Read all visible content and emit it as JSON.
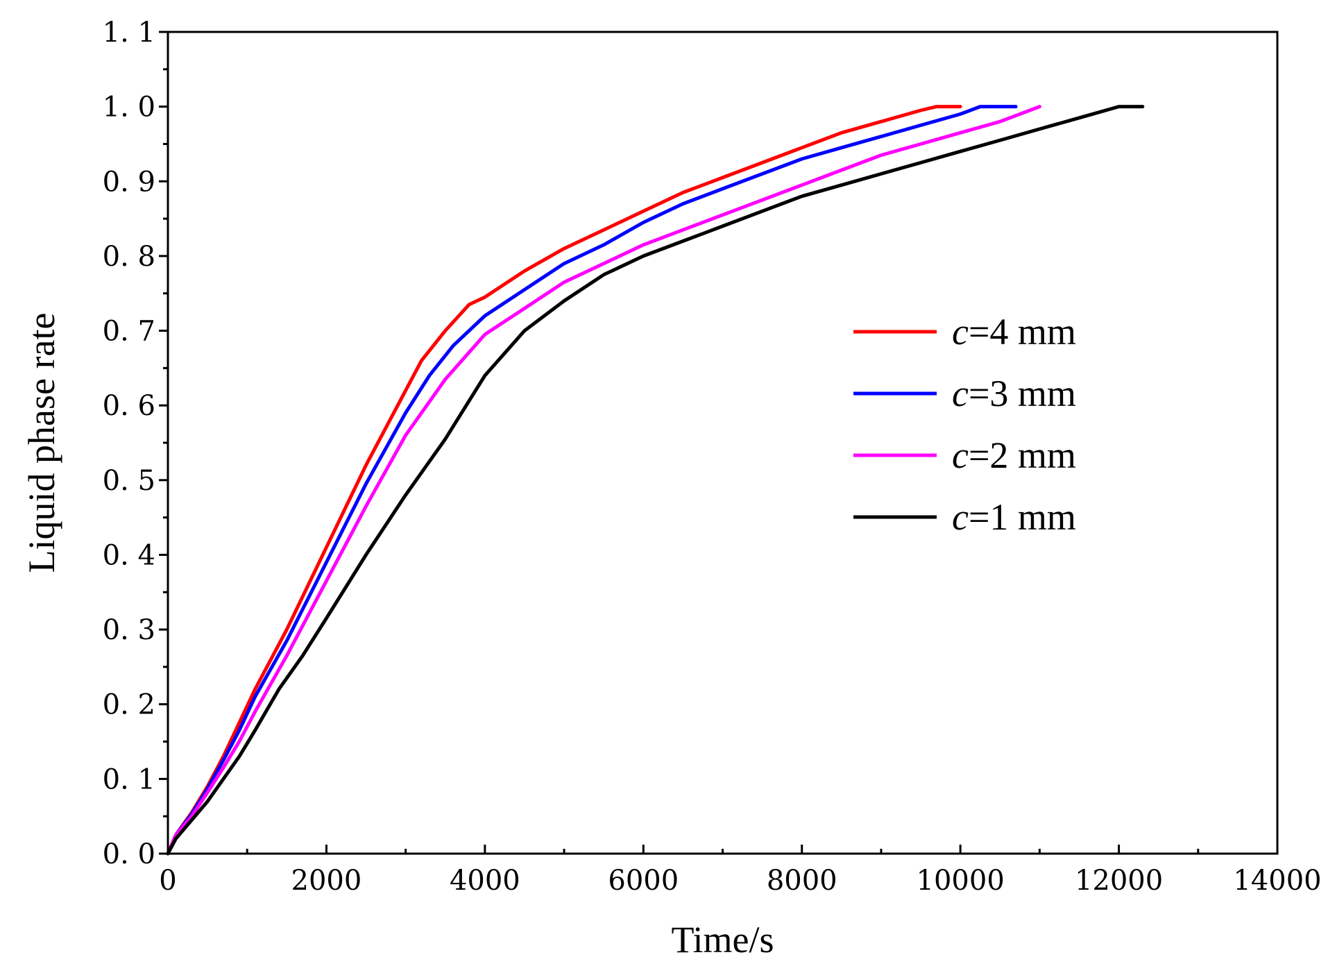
{
  "chart_data": {
    "type": "line",
    "title": "",
    "xlabel": "Time/s",
    "ylabel": "Liquid phase rate",
    "xlim": [
      0,
      14000
    ],
    "ylim": [
      0.0,
      1.1
    ],
    "x_ticks": [
      "0",
      "2000",
      "4000",
      "6000",
      "8000",
      "10000",
      "12000",
      "14000"
    ],
    "y_ticks": [
      "0. 0",
      "0. 1",
      "0. 2",
      "0. 3",
      "0. 4",
      "0. 5",
      "0. 6",
      "0. 7",
      "0. 8",
      "0. 9",
      "1. 0",
      "1. 1"
    ],
    "grid": false,
    "legend_position": "right-middle",
    "series": [
      {
        "name": "c=4 mm",
        "name_var": "c",
        "name_rest": "=4 mm",
        "color": "#ff0000",
        "x": [
          0,
          100,
          300,
          500,
          700,
          900,
          1100,
          1500,
          2000,
          2500,
          3000,
          3200,
          3500,
          3800,
          4000,
          4500,
          5000,
          5500,
          6000,
          6500,
          7000,
          7500,
          8000,
          8500,
          9000,
          9500,
          9700,
          10000
        ],
        "y": [
          0.0,
          0.025,
          0.055,
          0.09,
          0.13,
          0.175,
          0.22,
          0.3,
          0.41,
          0.52,
          0.62,
          0.66,
          0.7,
          0.735,
          0.745,
          0.78,
          0.81,
          0.835,
          0.86,
          0.885,
          0.905,
          0.925,
          0.945,
          0.965,
          0.98,
          0.995,
          1.0,
          1.0
        ]
      },
      {
        "name": "c=3 mm",
        "name_var": "c",
        "name_rest": "=3 mm",
        "color": "#0000ff",
        "x": [
          0,
          100,
          300,
          500,
          700,
          900,
          1100,
          1500,
          2000,
          2500,
          3000,
          3300,
          3600,
          4000,
          4500,
          5000,
          5500,
          6000,
          6500,
          7000,
          7500,
          8000,
          8500,
          9000,
          9500,
          10000,
          10250,
          10700
        ],
        "y": [
          0.0,
          0.025,
          0.053,
          0.087,
          0.125,
          0.165,
          0.21,
          0.285,
          0.39,
          0.495,
          0.59,
          0.64,
          0.68,
          0.72,
          0.755,
          0.79,
          0.815,
          0.845,
          0.87,
          0.89,
          0.91,
          0.93,
          0.945,
          0.96,
          0.975,
          0.99,
          1.0,
          1.0
        ]
      },
      {
        "name": "c=2 mm",
        "name_var": "c",
        "name_rest": "=2 mm",
        "color": "#ff00ff",
        "x": [
          0,
          100,
          300,
          500,
          700,
          900,
          1100,
          1500,
          2000,
          2500,
          3000,
          3500,
          4000,
          4500,
          5000,
          5500,
          6000,
          6500,
          7000,
          7500,
          8000,
          8500,
          9000,
          9500,
          10000,
          10500,
          11000
        ],
        "y": [
          0.0,
          0.025,
          0.05,
          0.082,
          0.115,
          0.15,
          0.19,
          0.265,
          0.365,
          0.465,
          0.56,
          0.635,
          0.695,
          0.73,
          0.765,
          0.79,
          0.815,
          0.835,
          0.855,
          0.875,
          0.895,
          0.915,
          0.935,
          0.95,
          0.965,
          0.98,
          1.0
        ]
      },
      {
        "name": "c=1 mm",
        "name_var": "c",
        "name_rest": "=1 mm",
        "color": "#000000",
        "x": [
          0,
          100,
          300,
          500,
          700,
          900,
          1100,
          1400,
          1700,
          2000,
          2500,
          3000,
          3500,
          4000,
          4500,
          5000,
          5500,
          6000,
          6500,
          7000,
          7500,
          8000,
          8500,
          9000,
          9500,
          10000,
          10500,
          11000,
          11500,
          12000,
          12300
        ],
        "y": [
          0.0,
          0.02,
          0.045,
          0.07,
          0.1,
          0.13,
          0.165,
          0.22,
          0.265,
          0.315,
          0.4,
          0.48,
          0.555,
          0.64,
          0.7,
          0.74,
          0.775,
          0.8,
          0.82,
          0.84,
          0.86,
          0.88,
          0.895,
          0.91,
          0.925,
          0.94,
          0.955,
          0.97,
          0.985,
          1.0,
          1.0
        ]
      }
    ]
  }
}
